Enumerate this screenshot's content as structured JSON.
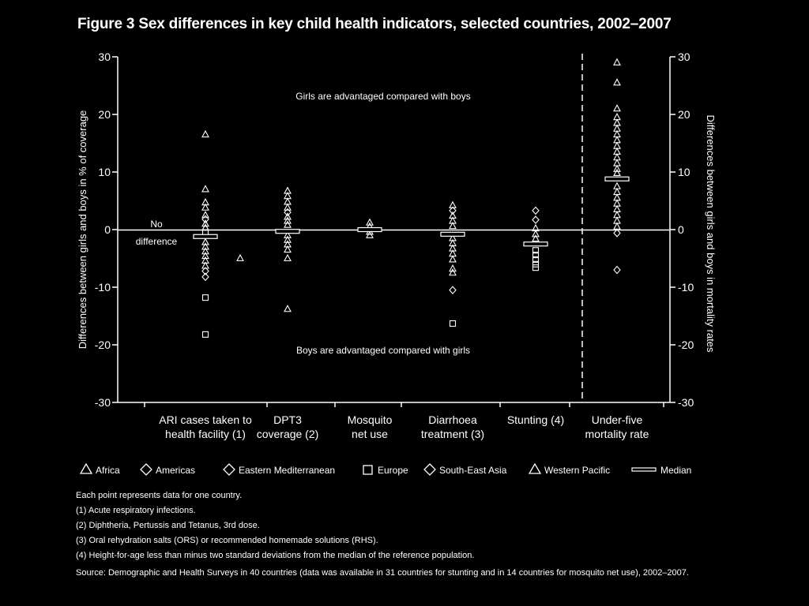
{
  "title": "Figure 3  Sex differences in key child health indicators, selected countries, 2002–2007",
  "chart_data": {
    "type": "scatter",
    "ylabel_left": "Differences between girls and boys in % of coverage",
    "ylabel_right": "Differences between girls and boys in mortality rates",
    "ylim": [
      -30,
      30
    ],
    "yticks": [
      30,
      20,
      10,
      0,
      -10,
      -20,
      -30
    ],
    "ytick_labels": [
      "30",
      "20",
      "10",
      "0",
      "-10",
      "-20",
      "-30"
    ],
    "annotation_top": "Girls are advantaged compared with boys",
    "annotation_bottom": "Boys are advantaged compared with girls",
    "no_difference_label": [
      "No",
      "difference"
    ],
    "categories": [
      {
        "key": "ari",
        "label": [
          "ARI cases taken to",
          "health facility (1)"
        ]
      },
      {
        "key": "dpt3",
        "label": [
          "DPT3",
          "coverage (2)"
        ]
      },
      {
        "key": "net",
        "label": [
          "Mosquito",
          "net use"
        ]
      },
      {
        "key": "diarrhoea",
        "label": [
          "Diarrhoea",
          "treatment (3)"
        ]
      },
      {
        "key": "stunting",
        "label": [
          "Stunting (4)"
        ]
      },
      {
        "key": "u5mr",
        "label": [
          "Under-five",
          "mortality rate"
        ]
      }
    ],
    "medians": {
      "ari": -1.2,
      "dpt3": -0.3,
      "net": 0,
      "diarrhoea": -0.8,
      "stunting": -2.5,
      "u5mr": 8.8
    },
    "points": [
      {
        "cat": "ari",
        "value": 16.5,
        "shape": "triangle"
      },
      {
        "cat": "ari",
        "value": 7.0,
        "shape": "triangle"
      },
      {
        "cat": "ari",
        "value": 4.7,
        "shape": "triangle"
      },
      {
        "cat": "ari",
        "value": 3.8,
        "shape": "triangle"
      },
      {
        "cat": "ari",
        "value": 2.5,
        "shape": "triangle"
      },
      {
        "cat": "ari",
        "value": 1.8,
        "shape": "diamond"
      },
      {
        "cat": "ari",
        "value": 1.0,
        "shape": "triangle"
      },
      {
        "cat": "ari",
        "value": 0.3,
        "shape": "triangle"
      },
      {
        "cat": "ari",
        "value": -0.5,
        "shape": "square"
      },
      {
        "cat": "ari",
        "value": -2.2,
        "shape": "triangle"
      },
      {
        "cat": "ari",
        "value": -3.0,
        "shape": "triangle"
      },
      {
        "cat": "ari",
        "value": -3.8,
        "shape": "triangle"
      },
      {
        "cat": "ari",
        "value": -4.6,
        "shape": "triangle"
      },
      {
        "cat": "ari",
        "value": -5.4,
        "shape": "triangle"
      },
      {
        "cat": "ari",
        "value": -6.3,
        "shape": "triangle"
      },
      {
        "cat": "ari",
        "value": -7.2,
        "shape": "diamond"
      },
      {
        "cat": "ari",
        "value": -8.2,
        "shape": "diamond"
      },
      {
        "cat": "ari",
        "value": -11.8,
        "shape": "square"
      },
      {
        "cat": "ari",
        "value": -18.2,
        "shape": "square"
      },
      {
        "cat": "ari_offset",
        "value": -5.0,
        "shape": "triangle"
      },
      {
        "cat": "dpt3",
        "value": 6.7,
        "shape": "triangle"
      },
      {
        "cat": "dpt3",
        "value": 5.8,
        "shape": "triangle"
      },
      {
        "cat": "dpt3",
        "value": 4.8,
        "shape": "triangle"
      },
      {
        "cat": "dpt3",
        "value": 3.8,
        "shape": "triangle"
      },
      {
        "cat": "dpt3",
        "value": 3.0,
        "shape": "diamond"
      },
      {
        "cat": "dpt3",
        "value": 2.2,
        "shape": "triangle"
      },
      {
        "cat": "dpt3",
        "value": 1.5,
        "shape": "triangle"
      },
      {
        "cat": "dpt3",
        "value": 0.8,
        "shape": "triangle"
      },
      {
        "cat": "dpt3",
        "value": -1.0,
        "shape": "triangle"
      },
      {
        "cat": "dpt3",
        "value": -1.8,
        "shape": "triangle"
      },
      {
        "cat": "dpt3",
        "value": -2.6,
        "shape": "triangle"
      },
      {
        "cat": "dpt3",
        "value": -3.5,
        "shape": "triangle"
      },
      {
        "cat": "dpt3",
        "value": -5.0,
        "shape": "triangle"
      },
      {
        "cat": "dpt3",
        "value": -13.8,
        "shape": "triangle"
      },
      {
        "cat": "net",
        "value": 1.2,
        "shape": "triangle"
      },
      {
        "cat": "net",
        "value": 0.5,
        "shape": "triangle"
      },
      {
        "cat": "net",
        "value": -0.4,
        "shape": "triangle"
      },
      {
        "cat": "net",
        "value": -1.0,
        "shape": "triangle"
      },
      {
        "cat": "diarrhoea",
        "value": 4.2,
        "shape": "triangle"
      },
      {
        "cat": "diarrhoea",
        "value": 3.3,
        "shape": "diamond"
      },
      {
        "cat": "diarrhoea",
        "value": 2.4,
        "shape": "triangle"
      },
      {
        "cat": "diarrhoea",
        "value": 1.5,
        "shape": "triangle"
      },
      {
        "cat": "diarrhoea",
        "value": 0.6,
        "shape": "triangle"
      },
      {
        "cat": "diarrhoea",
        "value": -1.5,
        "shape": "triangle"
      },
      {
        "cat": "diarrhoea",
        "value": -2.4,
        "shape": "triangle"
      },
      {
        "cat": "diarrhoea",
        "value": -3.3,
        "shape": "triangle"
      },
      {
        "cat": "diarrhoea",
        "value": -4.2,
        "shape": "triangle"
      },
      {
        "cat": "diarrhoea",
        "value": -5.2,
        "shape": "triangle"
      },
      {
        "cat": "diarrhoea",
        "value": -6.8,
        "shape": "triangle"
      },
      {
        "cat": "diarrhoea",
        "value": -7.5,
        "shape": "triangle"
      },
      {
        "cat": "diarrhoea",
        "value": -10.5,
        "shape": "diamond"
      },
      {
        "cat": "diarrhoea",
        "value": -16.3,
        "shape": "square"
      },
      {
        "cat": "stunting",
        "value": 3.3,
        "shape": "diamond"
      },
      {
        "cat": "stunting",
        "value": 1.7,
        "shape": "diamond"
      },
      {
        "cat": "stunting",
        "value": 0.2,
        "shape": "triangle"
      },
      {
        "cat": "stunting",
        "value": -0.8,
        "shape": "triangle"
      },
      {
        "cat": "stunting",
        "value": -1.6,
        "shape": "triangle"
      },
      {
        "cat": "stunting",
        "value": -3.6,
        "shape": "square"
      },
      {
        "cat": "stunting",
        "value": -4.4,
        "shape": "square"
      },
      {
        "cat": "stunting",
        "value": -5.2,
        "shape": "square"
      },
      {
        "cat": "stunting",
        "value": -6.0,
        "shape": "square"
      },
      {
        "cat": "stunting",
        "value": -6.6,
        "shape": "square"
      },
      {
        "cat": "u5mr",
        "value": 29.0,
        "shape": "triangle"
      },
      {
        "cat": "u5mr",
        "value": 25.5,
        "shape": "triangle"
      },
      {
        "cat": "u5mr",
        "value": 21.0,
        "shape": "triangle"
      },
      {
        "cat": "u5mr",
        "value": 19.5,
        "shape": "triangle"
      },
      {
        "cat": "u5mr",
        "value": 18.5,
        "shape": "triangle"
      },
      {
        "cat": "u5mr",
        "value": 17.5,
        "shape": "triangle"
      },
      {
        "cat": "u5mr",
        "value": 16.5,
        "shape": "triangle"
      },
      {
        "cat": "u5mr",
        "value": 15.5,
        "shape": "triangle"
      },
      {
        "cat": "u5mr",
        "value": 14.5,
        "shape": "triangle"
      },
      {
        "cat": "u5mr",
        "value": 13.5,
        "shape": "triangle"
      },
      {
        "cat": "u5mr",
        "value": 12.5,
        "shape": "triangle"
      },
      {
        "cat": "u5mr",
        "value": 11.5,
        "shape": "triangle"
      },
      {
        "cat": "u5mr",
        "value": 10.5,
        "shape": "triangle"
      },
      {
        "cat": "u5mr",
        "value": 9.8,
        "shape": "triangle"
      },
      {
        "cat": "u5mr",
        "value": 7.5,
        "shape": "triangle"
      },
      {
        "cat": "u5mr",
        "value": 6.5,
        "shape": "triangle"
      },
      {
        "cat": "u5mr",
        "value": 5.5,
        "shape": "triangle"
      },
      {
        "cat": "u5mr",
        "value": 4.5,
        "shape": "triangle"
      },
      {
        "cat": "u5mr",
        "value": 3.5,
        "shape": "triangle"
      },
      {
        "cat": "u5mr",
        "value": 2.5,
        "shape": "triangle"
      },
      {
        "cat": "u5mr",
        "value": 1.5,
        "shape": "triangle"
      },
      {
        "cat": "u5mr",
        "value": 0.5,
        "shape": "triangle"
      },
      {
        "cat": "u5mr",
        "value": -0.6,
        "shape": "diamond"
      },
      {
        "cat": "u5mr",
        "value": -7.0,
        "shape": "diamond"
      }
    ],
    "legend": [
      {
        "label": "Africa",
        "shape": "triangle"
      },
      {
        "label": "Americas",
        "shape": "diamond"
      },
      {
        "label": "Eastern Mediterranean",
        "shape": "diamond"
      },
      {
        "label": "Europe",
        "shape": "square"
      },
      {
        "label": "South-East Asia",
        "shape": "diamond"
      },
      {
        "label": "Western Pacific",
        "shape": "triangle"
      },
      {
        "label": "Median",
        "shape": "line"
      }
    ],
    "grid": false,
    "legend_placement": "bottom",
    "colors": {
      "background": "#000000",
      "foreground": "#ffffff"
    }
  },
  "notes": {
    "line1": "Each point represents data for one country.",
    "line2": "(1) Acute respiratory infections.",
    "line3": "(2) Diphtheria, Pertussis and Tetanus, 3rd dose.",
    "line4": "(3) Oral rehydration salts (ORS) or recommended homemade solutions (RHS).",
    "line5": "(4) Height-for-age less than minus two standard deviations from the median of the reference population.",
    "source": "Source: Demographic and Health Surveys in 40 countries (data was available in 31 countries for stunting and in 14 countries for mosquito net use), 2002–2007."
  }
}
